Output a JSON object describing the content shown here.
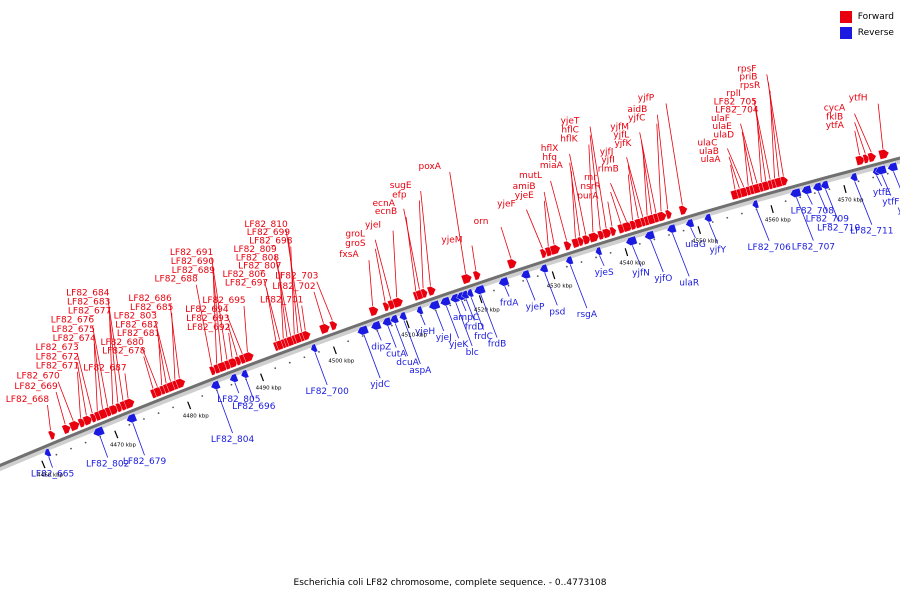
{
  "caption": "Escherichia coli LF82 chromosome, complete sequence. - 0..4773108",
  "legend": [
    {
      "label": "Forward",
      "color": "#e8000e"
    },
    {
      "label": "Reverse",
      "color": "#1a1ae0"
    }
  ],
  "colors": {
    "forward": "#e8000e",
    "reverse": "#1a1ae0",
    "backbone": "#707070"
  },
  "axis": {
    "unit": "kbp",
    "ticks": [
      4460,
      4470,
      4480,
      4490,
      4500,
      4510,
      4520,
      4530,
      4540,
      4550,
      4560,
      4570
    ],
    "range_kbp": [
      4455,
      4578
    ]
  },
  "forward_genes": [
    {
      "name": "LF82_668",
      "kbp": 4462.5
    },
    {
      "name": "LF82_669",
      "kbp": 4464.5
    },
    {
      "name": "LF82_670",
      "kbp": 4465.6
    },
    {
      "name": "LF82_671",
      "kbp": 4466.6
    },
    {
      "name": "LF82_672",
      "kbp": 4467.4
    },
    {
      "name": "LF82_673",
      "kbp": 4468.2
    },
    {
      "name": "LF82_674",
      "kbp": 4468.9
    },
    {
      "name": "LF82_675",
      "kbp": 4469.6
    },
    {
      "name": "LF82_676",
      "kbp": 4470.3
    },
    {
      "name": "LF82_677",
      "kbp": 4471.0
    },
    {
      "name": "LF82_683",
      "kbp": 4471.7
    },
    {
      "name": "LF82_684",
      "kbp": 4472.4
    },
    {
      "name": "LF82_687",
      "kbp": 4473.1
    },
    {
      "name": "LF82_678",
      "kbp": 4476.5
    },
    {
      "name": "LF82_680",
      "kbp": 4477.1
    },
    {
      "name": "LF82_681",
      "kbp": 4477.7
    },
    {
      "name": "LF82_682",
      "kbp": 4478.3
    },
    {
      "name": "LF82_803",
      "kbp": 4478.9
    },
    {
      "name": "LF82_685",
      "kbp": 4479.5
    },
    {
      "name": "LF82_686",
      "kbp": 4480.1
    },
    {
      "name": "LF82_688",
      "kbp": 4484.5
    },
    {
      "name": "LF82_689",
      "kbp": 4485.2
    },
    {
      "name": "LF82_690",
      "kbp": 4485.9
    },
    {
      "name": "LF82_691",
      "kbp": 4486.6
    },
    {
      "name": "LF82_692",
      "kbp": 4487.3
    },
    {
      "name": "LF82_693",
      "kbp": 4488.0
    },
    {
      "name": "LF82_694",
      "kbp": 4488.7
    },
    {
      "name": "LF82_695",
      "kbp": 4489.4
    },
    {
      "name": "LF82_697",
      "kbp": 4493.3
    },
    {
      "name": "LF82_806",
      "kbp": 4493.8
    },
    {
      "name": "LF82_807",
      "kbp": 4494.3
    },
    {
      "name": "LF82_808",
      "kbp": 4494.8
    },
    {
      "name": "LF82_809",
      "kbp": 4495.3
    },
    {
      "name": "LF82_698",
      "kbp": 4495.8
    },
    {
      "name": "LF82_699",
      "kbp": 4496.3
    },
    {
      "name": "LF82_810",
      "kbp": 4496.8
    },
    {
      "name": "LF82_701",
      "kbp": 4497.3
    },
    {
      "name": "LF82_702",
      "kbp": 4499.8
    },
    {
      "name": "LF82_703",
      "kbp": 4501.0
    },
    {
      "name": "fxsA",
      "kbp": 4506.5
    },
    {
      "name": "groS",
      "kbp": 4508.2
    },
    {
      "name": "groL",
      "kbp": 4509.0
    },
    {
      "name": "yjeI",
      "kbp": 4509.8
    },
    {
      "name": "ecnB",
      "kbp": 4512.4
    },
    {
      "name": "ecnA",
      "kbp": 4512.9
    },
    {
      "name": "efp",
      "kbp": 4513.4
    },
    {
      "name": "sugE",
      "kbp": 4514.4
    },
    {
      "name": "poxA",
      "kbp": 4519.2
    },
    {
      "name": "yjeM",
      "kbp": 4520.6
    },
    {
      "name": "orn",
      "kbp": 4525.4
    },
    {
      "name": "yjeF",
      "kbp": 4529.7
    },
    {
      "name": "yjeE",
      "kbp": 4530.5
    },
    {
      "name": "amiB",
      "kbp": 4531.3
    },
    {
      "name": "mutL",
      "kbp": 4533.0
    },
    {
      "name": "miaA",
      "kbp": 4534.2
    },
    {
      "name": "hfq",
      "kbp": 4534.8
    },
    {
      "name": "hflX",
      "kbp": 4535.6
    },
    {
      "name": "hflK",
      "kbp": 4536.6
    },
    {
      "name": "hflC",
      "kbp": 4537.6
    },
    {
      "name": "yjeT",
      "kbp": 4538.4
    },
    {
      "name": "purA",
      "kbp": 4539.2
    },
    {
      "name": "nsrR",
      "kbp": 4540.4
    },
    {
      "name": "rnr",
      "kbp": 4541.2
    },
    {
      "name": "rlmB",
      "kbp": 4542.0
    },
    {
      "name": "yjfI",
      "kbp": 4542.8
    },
    {
      "name": "yjfJ",
      "kbp": 4543.4
    },
    {
      "name": "yjfK",
      "kbp": 4544.0
    },
    {
      "name": "yjfL",
      "kbp": 4544.6
    },
    {
      "name": "yjfM",
      "kbp": 4545.2
    },
    {
      "name": "yjfC",
      "kbp": 4545.9
    },
    {
      "name": "aidB",
      "kbp": 4546.8
    },
    {
      "name": "yjfP",
      "kbp": 4548.8
    },
    {
      "name": "ulaA",
      "kbp": 4556.0
    },
    {
      "name": "ulaB",
      "kbp": 4556.6
    },
    {
      "name": "ulaC",
      "kbp": 4557.2
    },
    {
      "name": "ulaD",
      "kbp": 4557.8
    },
    {
      "name": "ulaE",
      "kbp": 4558.4
    },
    {
      "name": "ulaF",
      "kbp": 4559.0
    },
    {
      "name": "LF82_704",
      "kbp": 4559.6
    },
    {
      "name": "LF82_705",
      "kbp": 4560.2
    },
    {
      "name": "rplI",
      "kbp": 4560.8
    },
    {
      "name": "rpsR",
      "kbp": 4561.4
    },
    {
      "name": "priB",
      "kbp": 4562.0
    },
    {
      "name": "rpsF",
      "kbp": 4562.6
    },
    {
      "name": "ytfA",
      "kbp": 4573.0
    },
    {
      "name": "fklB",
      "kbp": 4573.8
    },
    {
      "name": "cycA",
      "kbp": 4574.6
    },
    {
      "name": "ytfH",
      "kbp": 4576.2
    }
  ],
  "reverse_genes": [
    {
      "name": "LF82_665",
      "kbp": 4461.0
    },
    {
      "name": "LF82_802",
      "kbp": 4468.0
    },
    {
      "name": "LF82_679",
      "kbp": 4472.5
    },
    {
      "name": "LF82_804",
      "kbp": 4484.0
    },
    {
      "name": "LF82_805",
      "kbp": 4486.5
    },
    {
      "name": "LF82_696",
      "kbp": 4488.0
    },
    {
      "name": "LF82_700",
      "kbp": 4497.5
    },
    {
      "name": "yjdC",
      "kbp": 4504.2
    },
    {
      "name": "dipZ",
      "kbp": 4506.0
    },
    {
      "name": "cutA",
      "kbp": 4507.5
    },
    {
      "name": "dcuA",
      "kbp": 4508.5
    },
    {
      "name": "aspA",
      "kbp": 4509.7
    },
    {
      "name": "yjeH",
      "kbp": 4512.0
    },
    {
      "name": "yjeJ",
      "kbp": 4514.0
    },
    {
      "name": "yjeK",
      "kbp": 4515.5
    },
    {
      "name": "blc",
      "kbp": 4516.8
    },
    {
      "name": "ampC",
      "kbp": 4517.6
    },
    {
      "name": "frdD",
      "kbp": 4518.2
    },
    {
      "name": "frdC",
      "kbp": 4518.9
    },
    {
      "name": "frdB",
      "kbp": 4520.2
    },
    {
      "name": "frdA",
      "kbp": 4523.5
    },
    {
      "name": "yjeP",
      "kbp": 4526.5
    },
    {
      "name": "psd",
      "kbp": 4529.0
    },
    {
      "name": "rsgA",
      "kbp": 4532.5
    },
    {
      "name": "yjeS",
      "kbp": 4536.5
    },
    {
      "name": "yjfN",
      "kbp": 4541.0
    },
    {
      "name": "yjfO",
      "kbp": 4543.5
    },
    {
      "name": "ulaR",
      "kbp": 4546.5
    },
    {
      "name": "ulaG",
      "kbp": 4549.0
    },
    {
      "name": "yjfY",
      "kbp": 4551.5
    },
    {
      "name": "LF82_706",
      "kbp": 4558.0
    },
    {
      "name": "LF82_707",
      "kbp": 4563.5
    },
    {
      "name": "LF82_708",
      "kbp": 4565.0
    },
    {
      "name": "LF82_709",
      "kbp": 4566.5
    },
    {
      "name": "LF82_710",
      "kbp": 4567.5
    },
    {
      "name": "LF82_711",
      "kbp": 4571.5
    },
    {
      "name": "ytfE",
      "kbp": 4574.5
    },
    {
      "name": "ytfF",
      "kbp": 4575.2
    },
    {
      "name": "ytfB",
      "kbp": 4576.8
    }
  ]
}
